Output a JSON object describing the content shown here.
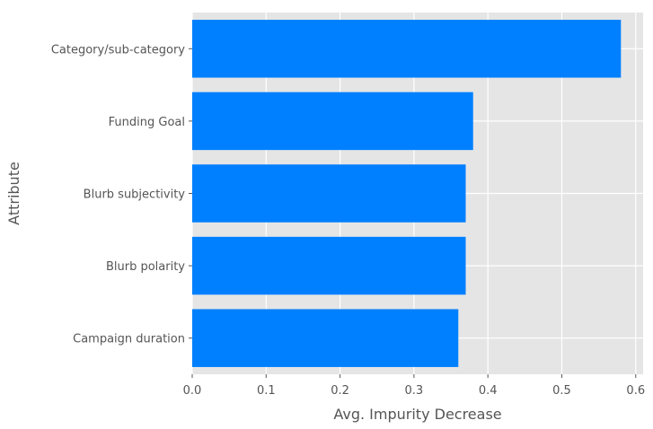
{
  "chart_data": {
    "type": "bar",
    "orientation": "horizontal",
    "categories": [
      "Category/sub-category",
      "Funding Goal",
      "Blurb subjectivity",
      "Blurb polarity",
      "Campaign duration"
    ],
    "values": [
      0.58,
      0.38,
      0.37,
      0.37,
      0.36
    ],
    "xlabel": "Avg. Impurity Decrease",
    "ylabel": "Attribute",
    "xlim": [
      0,
      0.61
    ],
    "xticks": [
      "0.0",
      "0.1",
      "0.2",
      "0.3",
      "0.4",
      "0.5",
      "0.6"
    ],
    "grid": true,
    "colors": {
      "bar": "#0080ff",
      "plot_background": "#e5e5e5",
      "grid": "#ffffff",
      "text": "#555555"
    }
  }
}
